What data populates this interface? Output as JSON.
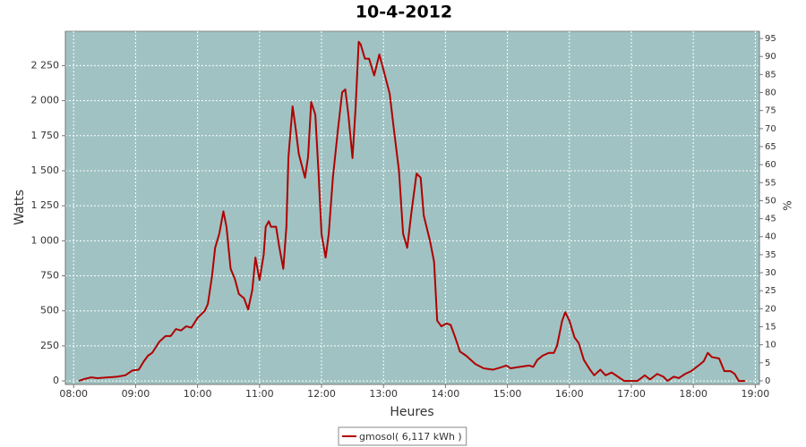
{
  "chart_data": {
    "type": "line",
    "title": "10-4-2012",
    "x_label": "Heures",
    "y_label": "Watts",
    "y2_label": "%",
    "x": [
      "08:05",
      "08:11",
      "08:17",
      "08:23",
      "08:33",
      "08:42",
      "08:50",
      "08:57",
      "09:03",
      "09:08",
      "09:12",
      "09:16",
      "09:23",
      "09:29",
      "09:34",
      "09:39",
      "09:44",
      "09:49",
      "09:54",
      "10:00",
      "10:07",
      "10:10",
      "10:14",
      "10:17",
      "10:21",
      "10:25",
      "10:28",
      "10:32",
      "10:36",
      "10:40",
      "10:45",
      "10:49",
      "10:53",
      "10:56",
      "11:00",
      "11:04",
      "11:06",
      "11:09",
      "11:11",
      "11:16",
      "11:19",
      "11:23",
      "11:26",
      "11:28",
      "11:32",
      "11:35",
      "11:38",
      "11:44",
      "11:47",
      "11:50",
      "11:54",
      "11:57",
      "12:00",
      "12:04",
      "12:07",
      "12:11",
      "12:16",
      "12:20",
      "12:23",
      "12:26",
      "12:30",
      "12:33",
      "12:36",
      "12:38",
      "12:42",
      "12:46",
      "12:51",
      "12:56",
      "13:00",
      "13:06",
      "13:10",
      "13:15",
      "13:19",
      "13:23",
      "13:27",
      "13:32",
      "13:36",
      "13:39",
      "13:45",
      "13:49",
      "13:52",
      "13:56",
      "14:01",
      "14:05",
      "14:09",
      "14:14",
      "14:20",
      "14:29",
      "14:37",
      "14:46",
      "14:55",
      "14:59",
      "15:03",
      "15:12",
      "15:21",
      "15:25",
      "15:29",
      "15:34",
      "15:40",
      "15:45",
      "15:48",
      "15:53",
      "15:56",
      "16:00",
      "16:05",
      "16:09",
      "16:14",
      "16:20",
      "16:24",
      "16:30",
      "16:35",
      "16:41",
      "16:47",
      "16:53",
      "17:06",
      "17:13",
      "17:18",
      "17:25",
      "17:31",
      "17:35",
      "17:41",
      "17:46",
      "17:52",
      "17:58",
      "18:05",
      "18:10",
      "18:14",
      "18:18",
      "18:25",
      "18:30",
      "18:36",
      "18:40",
      "18:44",
      "18:50"
    ],
    "series": [
      {
        "name": "gmosol( 6,117 kWh )",
        "color": "#b00000",
        "values": [
          0,
          15,
          25,
          20,
          25,
          30,
          40,
          75,
          80,
          140,
          180,
          200,
          280,
          320,
          320,
          370,
          360,
          390,
          380,
          450,
          500,
          550,
          750,
          950,
          1050,
          1210,
          1100,
          800,
          730,
          620,
          590,
          510,
          650,
          880,
          720,
          900,
          1100,
          1140,
          1100,
          1100,
          960,
          800,
          1100,
          1600,
          1960,
          1800,
          1620,
          1450,
          1600,
          1990,
          1900,
          1500,
          1050,
          880,
          1050,
          1450,
          1800,
          2060,
          2080,
          1900,
          1590,
          1950,
          2420,
          2400,
          2300,
          2300,
          2180,
          2330,
          2220,
          2050,
          1800,
          1500,
          1050,
          950,
          1200,
          1480,
          1450,
          1180,
          1000,
          850,
          430,
          390,
          410,
          400,
          320,
          210,
          180,
          120,
          90,
          80,
          100,
          110,
          90,
          100,
          110,
          100,
          150,
          180,
          200,
          200,
          250,
          430,
          490,
          430,
          310,
          270,
          150,
          80,
          40,
          80,
          40,
          60,
          30,
          0,
          0,
          40,
          10,
          50,
          30,
          0,
          30,
          20,
          50,
          70,
          110,
          140,
          200,
          170,
          160,
          70,
          70,
          50,
          0,
          0
        ]
      }
    ],
    "xlim": [
      "07:52",
      "19:04"
    ],
    "xticks": [
      "08:00",
      "09:00",
      "10:00",
      "11:00",
      "12:00",
      "13:00",
      "14:00",
      "15:00",
      "16:00",
      "17:00",
      "18:00",
      "19:00"
    ],
    "ylim": [
      -25,
      2495
    ],
    "yticks": [
      0,
      250,
      500,
      750,
      {
        "value": 1000,
        "label": "1 000"
      },
      {
        "value": 1250,
        "label": "1 250"
      },
      {
        "value": 1500,
        "label": "1 500"
      },
      {
        "value": 1750,
        "label": "1 750"
      },
      {
        "value": 2000,
        "label": "2 000"
      },
      {
        "value": 2250,
        "label": "2 250"
      }
    ],
    "y2lim": [
      -1,
      97
    ],
    "y2ticks": [
      0,
      5,
      10,
      15,
      20,
      25,
      30,
      35,
      40,
      45,
      50,
      55,
      60,
      65,
      70,
      75,
      80,
      85,
      90,
      95
    ],
    "grid": true,
    "plot_background": "#a0c2c2",
    "legend": "bottom"
  }
}
